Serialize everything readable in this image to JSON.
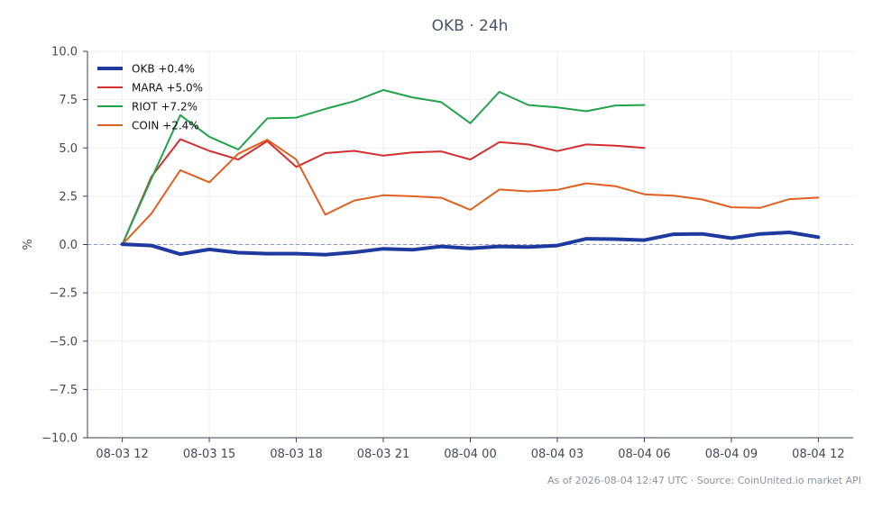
{
  "title": "OKB · 24h",
  "footer": "As of 2026-08-04 12:47 UTC · Source: CoinUnited.io market API",
  "chart_data": {
    "type": "line",
    "ylabel": "%",
    "xlabel": "",
    "ylim": [
      -10,
      10
    ],
    "xlim_hours": [
      -1.2,
      25.2
    ],
    "y_ticks": [
      -10,
      -7.5,
      -5,
      -2.5,
      0,
      2.5,
      5,
      7.5,
      10
    ],
    "y_tick_labels": [
      "−10.0",
      "−7.5",
      "−5.0",
      "−2.5",
      "0.0",
      "2.5",
      "5.0",
      "7.5",
      "10.0"
    ],
    "x_ticks": [
      "08-03 12",
      "08-03 15",
      "08-03 18",
      "08-03 21",
      "08-04 00",
      "08-04 03",
      "08-04 06",
      "08-04 09",
      "08-04 12"
    ],
    "x_tick_hours": [
      0,
      3,
      6,
      9,
      12,
      15,
      18,
      21,
      24
    ],
    "grid": true,
    "zero_line": true,
    "legend_position": "top-left",
    "series": [
      {
        "name": "OKB +0.4%",
        "color": "#1f3a9e",
        "width": 4,
        "x": [
          0,
          1,
          2,
          3,
          4,
          5,
          6,
          7,
          8,
          9,
          10,
          11,
          12,
          13,
          14,
          15,
          16,
          17,
          18,
          19,
          20,
          21,
          22,
          23,
          24
        ],
        "values": [
          0.02,
          -0.05,
          -0.5,
          -0.25,
          -0.42,
          -0.47,
          -0.47,
          -0.52,
          -0.4,
          -0.22,
          -0.27,
          -0.1,
          -0.2,
          -0.1,
          -0.13,
          -0.05,
          0.3,
          0.28,
          0.23,
          0.53,
          0.55,
          0.33,
          0.55,
          0.63,
          0.38
        ]
      },
      {
        "name": "MARA +5.0%",
        "color": "#d32f2f",
        "width": 2,
        "x": [
          0,
          1,
          2,
          3,
          4,
          5,
          6,
          7,
          8,
          9,
          10,
          11,
          12,
          13,
          14,
          15,
          16,
          17,
          18
        ],
        "values": [
          0.0,
          3.5,
          5.45,
          4.85,
          4.4,
          5.35,
          4.02,
          4.73,
          4.85,
          4.6,
          4.77,
          4.82,
          4.4,
          5.3,
          5.18,
          4.84,
          5.18,
          5.12,
          5.0
        ]
      },
      {
        "name": "RIOT +7.2%",
        "color": "#22a24a",
        "width": 2,
        "x": [
          0,
          1,
          2,
          3,
          4,
          5,
          6,
          7,
          8,
          9,
          10,
          11,
          12,
          13,
          14,
          15,
          16,
          17,
          18
        ],
        "values": [
          0.0,
          3.4,
          6.7,
          5.58,
          4.92,
          6.53,
          6.57,
          7.02,
          7.42,
          8.0,
          7.62,
          7.37,
          6.28,
          7.9,
          7.22,
          7.1,
          6.9,
          7.2,
          7.22
        ]
      },
      {
        "name": "COIN +2.4%",
        "color": "#e06020",
        "width": 2,
        "x": [
          0,
          1,
          2,
          3,
          4,
          5,
          6,
          7,
          8,
          9,
          10,
          11,
          12,
          13,
          14,
          15,
          16,
          17,
          18,
          19,
          20,
          21,
          22,
          23,
          24
        ],
        "values": [
          0.0,
          1.6,
          3.85,
          3.22,
          4.7,
          5.42,
          4.4,
          1.55,
          2.28,
          2.55,
          2.5,
          2.42,
          1.8,
          2.85,
          2.75,
          2.83,
          3.17,
          3.02,
          2.6,
          2.53,
          2.33,
          1.93,
          1.9,
          2.35,
          2.43
        ]
      }
    ]
  }
}
